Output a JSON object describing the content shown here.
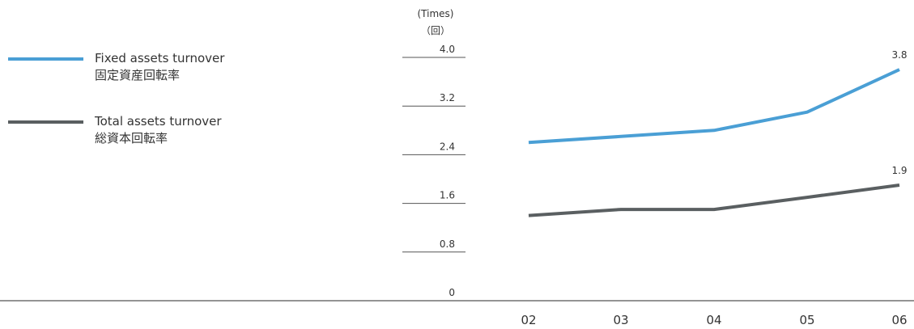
{
  "legend": [
    {
      "label_en": "Fixed assets turnover",
      "label_ja": "固定資産回転率",
      "color": "#4a9fd5"
    },
    {
      "label_en": "Total assets turnover",
      "label_ja": "総資本回転率",
      "color": "#5a5f61"
    }
  ],
  "chart_data": {
    "type": "line",
    "ylabel_en": "(Times)",
    "ylabel_ja": "（回）",
    "ylim": [
      0,
      4.0
    ],
    "yticks": [
      "4.0",
      "3.2",
      "2.4",
      "1.6",
      "0.8",
      "0"
    ],
    "ytick_values": [
      4.0,
      3.2,
      2.4,
      1.6,
      0.8,
      0
    ],
    "categories": [
      "02",
      "03",
      "04",
      "05",
      "06"
    ],
    "series": [
      {
        "name": "Fixed assets turnover",
        "color": "#4a9fd5",
        "values": [
          2.6,
          2.7,
          2.8,
          3.1,
          3.8
        ],
        "end_label": "3.8"
      },
      {
        "name": "Total assets turnover",
        "color": "#5a5f61",
        "values": [
          1.4,
          1.5,
          1.5,
          1.7,
          1.9
        ],
        "end_label": "1.9"
      }
    ]
  }
}
